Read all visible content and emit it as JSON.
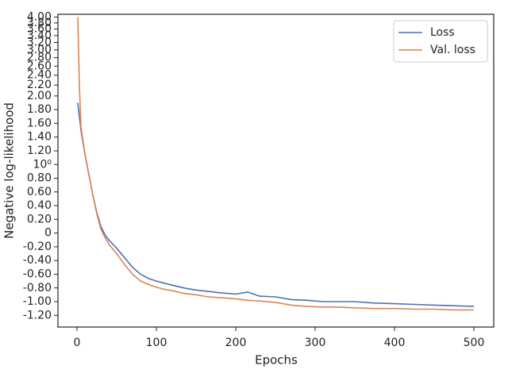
{
  "chart_data": {
    "type": "line",
    "xlabel": "Epochs",
    "ylabel": "Negative log-likelihood",
    "x": [
      1,
      3,
      5,
      10,
      15,
      20,
      25,
      30,
      35,
      40,
      50,
      60,
      70,
      80,
      90,
      100,
      110,
      120,
      135,
      150,
      165,
      180,
      200,
      215,
      230,
      250,
      270,
      290,
      310,
      330,
      350,
      375,
      400,
      425,
      450,
      475,
      500
    ],
    "series": [
      {
        "name": "Loss",
        "color": "#4c72b0",
        "values": [
          1.9,
          1.7,
          1.5,
          1.15,
          0.85,
          0.55,
          0.3,
          0.1,
          -0.02,
          -0.1,
          -0.22,
          -0.36,
          -0.5,
          -0.6,
          -0.66,
          -0.7,
          -0.73,
          -0.76,
          -0.8,
          -0.83,
          -0.85,
          -0.87,
          -0.89,
          -0.86,
          -0.92,
          -0.93,
          -0.97,
          -0.98,
          -1.0,
          -1.0,
          -1.0,
          -1.02,
          -1.03,
          -1.04,
          -1.05,
          -1.06,
          -1.07
        ]
      },
      {
        "name": "Val. loss",
        "color": "#dd8452",
        "values": [
          4.0,
          2.2,
          1.55,
          1.15,
          0.85,
          0.55,
          0.28,
          0.06,
          -0.06,
          -0.16,
          -0.3,
          -0.46,
          -0.6,
          -0.7,
          -0.75,
          -0.79,
          -0.82,
          -0.84,
          -0.88,
          -0.9,
          -0.93,
          -0.94,
          -0.96,
          -0.98,
          -0.99,
          -1.01,
          -1.05,
          -1.07,
          -1.08,
          -1.08,
          -1.09,
          -1.1,
          -1.1,
          -1.11,
          -1.11,
          -1.12,
          -1.12
        ]
      }
    ],
    "xlim": [
      -24,
      525
    ],
    "xticks": [
      0,
      100,
      200,
      300,
      400,
      500
    ],
    "ylim": [
      -1.37,
      4.1
    ],
    "yscale": "symlog",
    "linthresh": 2,
    "yticks": [
      {
        "value": -1.2,
        "label": "-1.20"
      },
      {
        "value": -1.0,
        "label": "-1.00"
      },
      {
        "value": -0.8,
        "label": "-0.80"
      },
      {
        "value": -0.6,
        "label": "-0.60"
      },
      {
        "value": -0.4,
        "label": "-0.40"
      },
      {
        "value": -0.2,
        "label": "-0.20"
      },
      0,
      {
        "value": 0.2,
        "label": "0.20"
      },
      {
        "value": 0.4,
        "label": "0.40"
      },
      {
        "value": 0.6,
        "label": "0.60"
      },
      {
        "value": 0.8,
        "label": "0.80"
      },
      {
        "value": 1.0,
        "label": "10⁰"
      },
      {
        "value": 1.2,
        "label": "1.20"
      },
      {
        "value": 1.4,
        "label": "1.40"
      },
      {
        "value": 1.6,
        "label": "1.60"
      },
      {
        "value": 1.8,
        "label": "1.80"
      },
      {
        "value": 2.0,
        "label": "2.00"
      },
      {
        "value": 2.2,
        "label": "2.20"
      },
      {
        "value": 2.4,
        "label": "2.40"
      },
      {
        "value": 2.6,
        "label": "2.60"
      },
      {
        "value": 2.8,
        "label": "2.80"
      },
      {
        "value": 3.0,
        "label": "3.00"
      },
      {
        "value": 3.2,
        "label": "3.20"
      },
      {
        "value": 3.4,
        "label": "3.40"
      },
      {
        "value": 3.6,
        "label": "3.60"
      },
      {
        "value": 3.8,
        "label": "3.80"
      },
      {
        "value": 4.0,
        "label": "4.00"
      }
    ],
    "legend": "upper right",
    "grid": false
  }
}
